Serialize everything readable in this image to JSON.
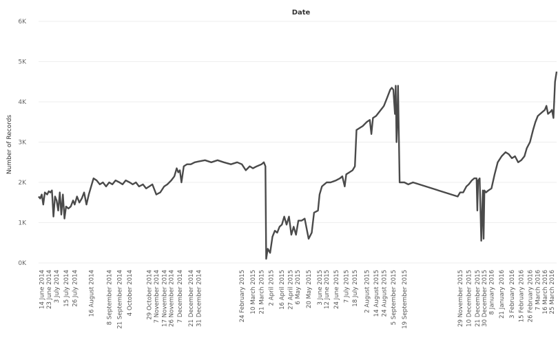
{
  "chart_data": {
    "type": "line",
    "title": "Date",
    "xlabel": "",
    "ylabel": "Number of Records",
    "ylim": [
      0,
      6000
    ],
    "yticks": [
      {
        "value": 0,
        "label": "0K"
      },
      {
        "value": 1000,
        "label": "1K"
      },
      {
        "value": 2000,
        "label": "2K"
      },
      {
        "value": 3000,
        "label": "3K"
      },
      {
        "value": 4000,
        "label": "4K"
      },
      {
        "value": 5000,
        "label": "5K"
      },
      {
        "value": 6000,
        "label": "6K"
      }
    ],
    "xlim": [
      "2014-06-10",
      "2016-03-31"
    ],
    "xticks": [
      {
        "date": "2014-06-14",
        "label": "14 June 2014"
      },
      {
        "date": "2014-06-23",
        "label": "23 June 2014"
      },
      {
        "date": "2014-07-03",
        "label": "3 July 2014"
      },
      {
        "date": "2014-07-15",
        "label": "15 July 2014"
      },
      {
        "date": "2014-07-26",
        "label": "26 July 2014"
      },
      {
        "date": "2014-08-16",
        "label": "16 August 2014"
      },
      {
        "date": "2014-09-08",
        "label": "8 September 2014"
      },
      {
        "date": "2014-09-21",
        "label": "21 September 2014"
      },
      {
        "date": "2014-10-04",
        "label": "4 October 2014"
      },
      {
        "date": "2014-10-29",
        "label": "29 October 2014"
      },
      {
        "date": "2014-11-07",
        "label": "7 November 2014"
      },
      {
        "date": "2014-11-17",
        "label": "17 November 2014"
      },
      {
        "date": "2014-11-26",
        "label": "26 November 2014"
      },
      {
        "date": "2014-12-07",
        "label": "7 December 2014"
      },
      {
        "date": "2014-12-21",
        "label": "21 December 2014"
      },
      {
        "date": "2014-12-31",
        "label": "31 December 2014"
      },
      {
        "date": "2015-02-24",
        "label": "24 February 2015"
      },
      {
        "date": "2015-03-10",
        "label": "10 March 2015"
      },
      {
        "date": "2015-03-21",
        "label": "21 March 2015"
      },
      {
        "date": "2015-04-02",
        "label": "2 April 2015"
      },
      {
        "date": "2015-04-16",
        "label": "16 April 2015"
      },
      {
        "date": "2015-04-27",
        "label": "27 April 2015"
      },
      {
        "date": "2015-05-06",
        "label": "6 May 2015"
      },
      {
        "date": "2015-05-20",
        "label": "20 May 2015"
      },
      {
        "date": "2015-06-03",
        "label": "3 June 2015"
      },
      {
        "date": "2015-06-12",
        "label": "12 June 2015"
      },
      {
        "date": "2015-06-24",
        "label": "24 June 2015"
      },
      {
        "date": "2015-07-07",
        "label": "7 July 2015"
      },
      {
        "date": "2015-07-18",
        "label": "18 July 2015"
      },
      {
        "date": "2015-08-02",
        "label": "2 August 2015"
      },
      {
        "date": "2015-08-14",
        "label": "14 August 2015"
      },
      {
        "date": "2015-08-24",
        "label": "24 August 2015"
      },
      {
        "date": "2015-09-05",
        "label": "5 September 2015"
      },
      {
        "date": "2015-09-19",
        "label": "19 September 2015"
      },
      {
        "date": "2015-11-29",
        "label": "29 November 2015"
      },
      {
        "date": "2015-12-10",
        "label": "10 December 2015"
      },
      {
        "date": "2015-12-21",
        "label": "21 December 2015"
      },
      {
        "date": "2015-12-30",
        "label": "30 December 2015"
      },
      {
        "date": "2016-01-08",
        "label": "8 January 2016"
      },
      {
        "date": "2016-01-21",
        "label": "21 January 2016"
      },
      {
        "date": "2016-02-03",
        "label": "3 February 2016"
      },
      {
        "date": "2016-02-15",
        "label": "15 February 2016"
      },
      {
        "date": "2016-02-26",
        "label": "26 February 2016"
      },
      {
        "date": "2016-03-07",
        "label": "7 March 2016"
      },
      {
        "date": "2016-03-16",
        "label": "16 March 2016"
      },
      {
        "date": "2016-03-25",
        "label": "25 March 2016"
      }
    ],
    "grid": true,
    "legend": "none",
    "series": [
      {
        "color": "#4a4a4a",
        "points": [
          [
            "2014-06-10",
            1650
          ],
          [
            "2014-06-12",
            1600
          ],
          [
            "2014-06-14",
            1700
          ],
          [
            "2014-06-16",
            1450
          ],
          [
            "2014-06-18",
            1750
          ],
          [
            "2014-06-21",
            1700
          ],
          [
            "2014-06-23",
            1780
          ],
          [
            "2014-06-25",
            1750
          ],
          [
            "2014-06-27",
            1800
          ],
          [
            "2014-06-29",
            1150
          ],
          [
            "2014-07-01",
            1650
          ],
          [
            "2014-07-03",
            1550
          ],
          [
            "2014-07-05",
            1300
          ],
          [
            "2014-07-07",
            1750
          ],
          [
            "2014-07-09",
            1200
          ],
          [
            "2014-07-11",
            1700
          ],
          [
            "2014-07-13",
            1100
          ],
          [
            "2014-07-15",
            1400
          ],
          [
            "2014-07-18",
            1350
          ],
          [
            "2014-07-21",
            1400
          ],
          [
            "2014-07-24",
            1550
          ],
          [
            "2014-07-26",
            1450
          ],
          [
            "2014-07-29",
            1650
          ],
          [
            "2014-08-01",
            1500
          ],
          [
            "2014-08-04",
            1600
          ],
          [
            "2014-08-07",
            1750
          ],
          [
            "2014-08-10",
            1450
          ],
          [
            "2014-08-13",
            1700
          ],
          [
            "2014-08-16",
            1900
          ],
          [
            "2014-08-19",
            2100
          ],
          [
            "2014-08-23",
            2050
          ],
          [
            "2014-08-27",
            1950
          ],
          [
            "2014-08-31",
            2000
          ],
          [
            "2014-09-04",
            1900
          ],
          [
            "2014-09-08",
            2000
          ],
          [
            "2014-09-12",
            1950
          ],
          [
            "2014-09-16",
            2050
          ],
          [
            "2014-09-21",
            2000
          ],
          [
            "2014-09-25",
            1950
          ],
          [
            "2014-09-29",
            2050
          ],
          [
            "2014-10-04",
            2000
          ],
          [
            "2014-10-08",
            1950
          ],
          [
            "2014-10-12",
            2000
          ],
          [
            "2014-10-16",
            1900
          ],
          [
            "2014-10-21",
            1950
          ],
          [
            "2014-10-25",
            1850
          ],
          [
            "2014-10-29",
            1900
          ],
          [
            "2014-11-02",
            1950
          ],
          [
            "2014-11-07",
            1700
          ],
          [
            "2014-11-12",
            1750
          ],
          [
            "2014-11-17",
            1900
          ],
          [
            "2014-11-21",
            1950
          ],
          [
            "2014-11-26",
            2050
          ],
          [
            "2014-11-30",
            2150
          ],
          [
            "2014-12-03",
            2350
          ],
          [
            "2014-12-05",
            2250
          ],
          [
            "2014-12-07",
            2300
          ],
          [
            "2014-12-09",
            2000
          ],
          [
            "2014-12-12",
            2400
          ],
          [
            "2014-12-16",
            2450
          ],
          [
            "2014-12-21",
            2450
          ],
          [
            "2014-12-26",
            2500
          ],
          [
            "2014-12-31",
            2520
          ],
          [
            "2015-01-08",
            2550
          ],
          [
            "2015-01-16",
            2500
          ],
          [
            "2015-01-24",
            2550
          ],
          [
            "2015-02-01",
            2500
          ],
          [
            "2015-02-10",
            2450
          ],
          [
            "2015-02-18",
            2500
          ],
          [
            "2015-02-24",
            2450
          ],
          [
            "2015-03-01",
            2300
          ],
          [
            "2015-03-06",
            2400
          ],
          [
            "2015-03-10",
            2350
          ],
          [
            "2015-03-15",
            2400
          ],
          [
            "2015-03-21",
            2450
          ],
          [
            "2015-03-24",
            2500
          ],
          [
            "2015-03-26",
            2400
          ],
          [
            "2015-03-27",
            100
          ],
          [
            "2015-03-29",
            350
          ],
          [
            "2015-04-01",
            250
          ],
          [
            "2015-04-04",
            650
          ],
          [
            "2015-04-07",
            800
          ],
          [
            "2015-04-10",
            750
          ],
          [
            "2015-04-13",
            900
          ],
          [
            "2015-04-16",
            950
          ],
          [
            "2015-04-19",
            1150
          ],
          [
            "2015-04-22",
            950
          ],
          [
            "2015-04-25",
            1150
          ],
          [
            "2015-04-28",
            700
          ],
          [
            "2015-05-01",
            900
          ],
          [
            "2015-05-04",
            700
          ],
          [
            "2015-05-07",
            1050
          ],
          [
            "2015-05-11",
            1050
          ],
          [
            "2015-05-15",
            1100
          ],
          [
            "2015-05-20",
            600
          ],
          [
            "2015-05-24",
            750
          ],
          [
            "2015-05-27",
            1250
          ],
          [
            "2015-06-01",
            1300
          ],
          [
            "2015-06-03",
            1700
          ],
          [
            "2015-06-06",
            1900
          ],
          [
            "2015-06-09",
            1950
          ],
          [
            "2015-06-12",
            2000
          ],
          [
            "2015-06-17",
            2000
          ],
          [
            "2015-06-24",
            2050
          ],
          [
            "2015-06-29",
            2100
          ],
          [
            "2015-07-02",
            2150
          ],
          [
            "2015-07-05",
            1900
          ],
          [
            "2015-07-07",
            2200
          ],
          [
            "2015-07-11",
            2250
          ],
          [
            "2015-07-15",
            2300
          ],
          [
            "2015-07-18",
            2400
          ],
          [
            "2015-07-20",
            3300
          ],
          [
            "2015-07-24",
            3350
          ],
          [
            "2015-07-28",
            3400
          ],
          [
            "2015-08-02",
            3500
          ],
          [
            "2015-08-06",
            3550
          ],
          [
            "2015-08-08",
            3200
          ],
          [
            "2015-08-10",
            3600
          ],
          [
            "2015-08-14",
            3650
          ],
          [
            "2015-08-18",
            3750
          ],
          [
            "2015-08-22",
            3850
          ],
          [
            "2015-08-24",
            3900
          ],
          [
            "2015-08-28",
            4100
          ],
          [
            "2015-09-01",
            4300
          ],
          [
            "2015-09-03",
            4350
          ],
          [
            "2015-09-05",
            4300
          ],
          [
            "2015-09-07",
            3700
          ],
          [
            "2015-09-08",
            4400
          ],
          [
            "2015-09-09",
            3000
          ],
          [
            "2015-09-10",
            3500
          ],
          [
            "2015-09-11",
            4400
          ],
          [
            "2015-09-13",
            2000
          ],
          [
            "2015-09-19",
            2000
          ],
          [
            "2015-09-24",
            1950
          ],
          [
            "2015-09-30",
            2000
          ],
          [
            "2015-11-26",
            1650
          ],
          [
            "2015-11-29",
            1750
          ],
          [
            "2015-12-03",
            1750
          ],
          [
            "2015-12-07",
            1900
          ],
          [
            "2015-12-10",
            1950
          ],
          [
            "2015-12-14",
            2050
          ],
          [
            "2015-12-17",
            2100
          ],
          [
            "2015-12-20",
            2100
          ],
          [
            "2015-12-21",
            1300
          ],
          [
            "2015-12-22",
            2050
          ],
          [
            "2015-12-24",
            2100
          ],
          [
            "2015-12-26",
            550
          ],
          [
            "2015-12-28",
            1800
          ],
          [
            "2015-12-29",
            600
          ],
          [
            "2015-12-30",
            1800
          ],
          [
            "2016-01-01",
            1750
          ],
          [
            "2016-01-04",
            1800
          ],
          [
            "2016-01-08",
            1850
          ],
          [
            "2016-01-12",
            2200
          ],
          [
            "2016-01-16",
            2500
          ],
          [
            "2016-01-21",
            2650
          ],
          [
            "2016-01-26",
            2750
          ],
          [
            "2016-01-30",
            2700
          ],
          [
            "2016-02-03",
            2600
          ],
          [
            "2016-02-07",
            2650
          ],
          [
            "2016-02-11",
            2500
          ],
          [
            "2016-02-15",
            2550
          ],
          [
            "2016-02-19",
            2650
          ],
          [
            "2016-02-22",
            2850
          ],
          [
            "2016-02-26",
            3000
          ],
          [
            "2016-03-01",
            3300
          ],
          [
            "2016-03-04",
            3500
          ],
          [
            "2016-03-07",
            3650
          ],
          [
            "2016-03-10",
            3700
          ],
          [
            "2016-03-13",
            3750
          ],
          [
            "2016-03-16",
            3800
          ],
          [
            "2016-03-18",
            3900
          ],
          [
            "2016-03-20",
            3700
          ],
          [
            "2016-03-23",
            3750
          ],
          [
            "2016-03-25",
            3800
          ],
          [
            "2016-03-27",
            3600
          ],
          [
            "2016-03-29",
            4500
          ],
          [
            "2016-03-31",
            4750
          ]
        ]
      }
    ]
  }
}
